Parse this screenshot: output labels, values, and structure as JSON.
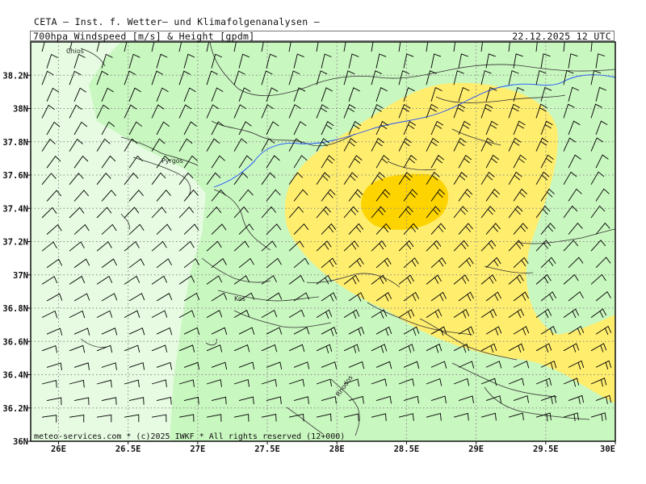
{
  "header": {
    "institute": "CETA – Inst. f. Wetter– und Klimafolgenanalysen –",
    "product": "700hpa_Windspeed_[m/s]_&_Height_[gpdm]",
    "valid_time": "22.12.2025 12 UTC"
  },
  "footer": {
    "copyright": "meteo-services.com * (c)2025 IWKF * All rights reserved (12+000)"
  },
  "axes": {
    "lat_labels": [
      "36N",
      "36.2N",
      "36.4N",
      "36.6N",
      "36.8N",
      "37N",
      "37.2N",
      "37.4N",
      "37.6N",
      "37.8N",
      "38N",
      "38.2N"
    ],
    "lon_labels": [
      "26E",
      "26.5E",
      "27E",
      "27.5E",
      "28E",
      "28.5E",
      "29E",
      "29.5E",
      "30E"
    ],
    "lat_values": [
      36.0,
      36.2,
      36.4,
      36.6,
      36.8,
      37.0,
      37.2,
      37.4,
      37.6,
      37.8,
      38.0,
      38.2
    ],
    "lon_values": [
      26.0,
      26.5,
      27.0,
      27.5,
      28.0,
      28.5,
      29.0,
      29.5,
      30.0
    ]
  },
  "places": {
    "chios": "Chios",
    "pyrgos": "Pyrgos",
    "kos": "Kos",
    "rhodos": "Rhodos"
  },
  "colors": {
    "very_light_green": "#e6fbe1",
    "light_green": "#c9f7c0",
    "yellow": "#ffed6e",
    "gold": "#fdd400",
    "grid": "#8a8a8a",
    "coast": "#333333",
    "river": "#1e50ff",
    "barb": "#000000"
  },
  "legend_note": "wind barbs: grid of wind barbs over the domain",
  "map": {
    "projection": "lat-lon",
    "lon_range": [
      25.8,
      30.0
    ],
    "lat_range": [
      36.0,
      38.4
    ]
  }
}
